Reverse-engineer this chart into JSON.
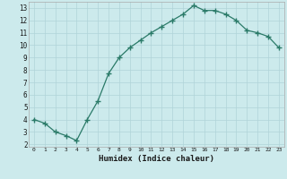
{
  "x": [
    0,
    1,
    2,
    3,
    4,
    5,
    6,
    7,
    8,
    9,
    10,
    11,
    12,
    13,
    14,
    15,
    16,
    17,
    18,
    19,
    20,
    21,
    22,
    23
  ],
  "y": [
    4.0,
    3.7,
    3.0,
    2.7,
    2.3,
    4.0,
    5.5,
    7.7,
    9.0,
    9.8,
    10.4,
    11.0,
    11.5,
    12.0,
    12.5,
    13.2,
    12.8,
    12.8,
    12.5,
    12.0,
    11.2,
    11.0,
    10.7,
    9.8
  ],
  "title": "",
  "xlabel": "Humidex (Indice chaleur)",
  "ylabel": "",
  "xlim": [
    -0.5,
    23.5
  ],
  "ylim": [
    1.8,
    13.5
  ],
  "line_color": "#2a7a68",
  "marker_color": "#2a7a68",
  "bg_color": "#cceaec",
  "grid_color": "#b0d4d8",
  "xlabel_color": "#1a1a1a",
  "xtick_labels": [
    "0",
    "1",
    "2",
    "3",
    "4",
    "5",
    "6",
    "7",
    "8",
    "9",
    "10",
    "11",
    "12",
    "13",
    "14",
    "15",
    "16",
    "17",
    "18",
    "19",
    "20",
    "21",
    "22",
    "23"
  ],
  "ytick_values": [
    2,
    3,
    4,
    5,
    6,
    7,
    8,
    9,
    10,
    11,
    12,
    13
  ]
}
